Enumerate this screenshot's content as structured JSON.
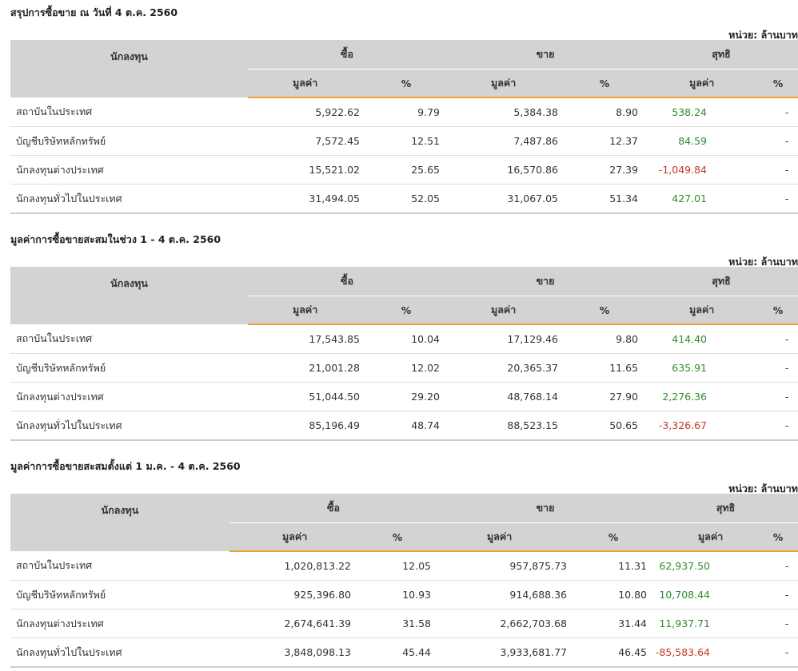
{
  "unit_label": "หน่วย: ล้านบาท",
  "headers": {
    "investor": "นักลงทุน",
    "buy": "ซื้อ",
    "sell": "ขาย",
    "net": "สุทธิ",
    "value": "มูลค่า",
    "percent": "%"
  },
  "colors": {
    "positive": "#2e8b2e",
    "negative": "#c0392b",
    "accent_line": "#f0a030",
    "header_bg": "#d3d3d3"
  },
  "sections": [
    {
      "title": "สรุปการซื้อขาย ณ วันที่ 4 ต.ค. 2560",
      "rows": [
        {
          "name": "สถาบันในประเทศ",
          "buy_value": "5,922.62",
          "buy_pct": "9.79",
          "sell_value": "5,384.38",
          "sell_pct": "8.90",
          "net_value": "538.24",
          "net_pct": "-",
          "net_sign": "pos"
        },
        {
          "name": "บัญชีบริษัทหลักทรัพย์",
          "buy_value": "7,572.45",
          "buy_pct": "12.51",
          "sell_value": "7,487.86",
          "sell_pct": "12.37",
          "net_value": "84.59",
          "net_pct": "-",
          "net_sign": "pos"
        },
        {
          "name": "นักลงทุนต่างประเทศ",
          "buy_value": "15,521.02",
          "buy_pct": "25.65",
          "sell_value": "16,570.86",
          "sell_pct": "27.39",
          "net_value": "-1,049.84",
          "net_pct": "-",
          "net_sign": "neg"
        },
        {
          "name": "นักลงทุนทั่วไปในประเทศ",
          "buy_value": "31,494.05",
          "buy_pct": "52.05",
          "sell_value": "31,067.05",
          "sell_pct": "51.34",
          "net_value": "427.01",
          "net_pct": "-",
          "net_sign": "pos"
        }
      ]
    },
    {
      "title": "มูลค่าการซื้อขายสะสมในช่วง 1 - 4 ต.ค. 2560",
      "rows": [
        {
          "name": "สถาบันในประเทศ",
          "buy_value": "17,543.85",
          "buy_pct": "10.04",
          "sell_value": "17,129.46",
          "sell_pct": "9.80",
          "net_value": "414.40",
          "net_pct": "-",
          "net_sign": "pos"
        },
        {
          "name": "บัญชีบริษัทหลักทรัพย์",
          "buy_value": "21,001.28",
          "buy_pct": "12.02",
          "sell_value": "20,365.37",
          "sell_pct": "11.65",
          "net_value": "635.91",
          "net_pct": "-",
          "net_sign": "pos"
        },
        {
          "name": "นักลงทุนต่างประเทศ",
          "buy_value": "51,044.50",
          "buy_pct": "29.20",
          "sell_value": "48,768.14",
          "sell_pct": "27.90",
          "net_value": "2,276.36",
          "net_pct": "-",
          "net_sign": "pos"
        },
        {
          "name": "นักลงทุนทั่วไปในประเทศ",
          "buy_value": "85,196.49",
          "buy_pct": "48.74",
          "sell_value": "88,523.15",
          "sell_pct": "50.65",
          "net_value": "-3,326.67",
          "net_pct": "-",
          "net_sign": "neg"
        }
      ]
    },
    {
      "title": "มูลค่าการซื้อขายสะสมตั้งแต่ 1 ม.ค. - 4 ต.ค. 2560",
      "rows": [
        {
          "name": "สถาบันในประเทศ",
          "buy_value": "1,020,813.22",
          "buy_pct": "12.05",
          "sell_value": "957,875.73",
          "sell_pct": "11.31",
          "net_value": "62,937.50",
          "net_pct": "-",
          "net_sign": "pos"
        },
        {
          "name": "บัญชีบริษัทหลักทรัพย์",
          "buy_value": "925,396.80",
          "buy_pct": "10.93",
          "sell_value": "914,688.36",
          "sell_pct": "10.80",
          "net_value": "10,708.44",
          "net_pct": "-",
          "net_sign": "pos"
        },
        {
          "name": "นักลงทุนต่างประเทศ",
          "buy_value": "2,674,641.39",
          "buy_pct": "31.58",
          "sell_value": "2,662,703.68",
          "sell_pct": "31.44",
          "net_value": "11,937.71",
          "net_pct": "-",
          "net_sign": "pos"
        },
        {
          "name": "นักลงทุนทั่วไปในประเทศ",
          "buy_value": "3,848,098.13",
          "buy_pct": "45.44",
          "sell_value": "3,933,681.77",
          "sell_pct": "46.45",
          "net_value": "-85,583.64",
          "net_pct": "-",
          "net_sign": "neg"
        }
      ]
    }
  ]
}
